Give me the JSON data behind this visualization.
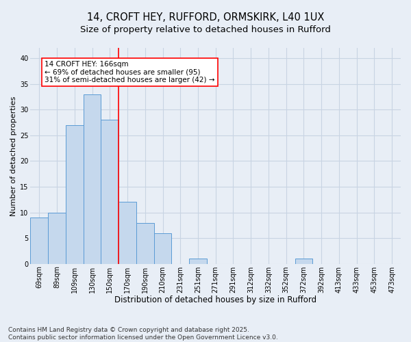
{
  "title_line1": "14, CROFT HEY, RUFFORD, ORMSKIRK, L40 1UX",
  "title_line2": "Size of property relative to detached houses in Rufford",
  "xlabel": "Distribution of detached houses by size in Rufford",
  "ylabel": "Number of detached properties",
  "categories": [
    "69sqm",
    "89sqm",
    "109sqm",
    "130sqm",
    "150sqm",
    "170sqm",
    "190sqm",
    "210sqm",
    "231sqm",
    "251sqm",
    "271sqm",
    "291sqm",
    "312sqm",
    "332sqm",
    "352sqm",
    "372sqm",
    "392sqm",
    "413sqm",
    "433sqm",
    "453sqm",
    "473sqm"
  ],
  "values": [
    9,
    10,
    27,
    33,
    28,
    12,
    8,
    6,
    0,
    1,
    0,
    0,
    0,
    0,
    0,
    1,
    0,
    0,
    0,
    0,
    0
  ],
  "bar_color": "#c5d8ed",
  "bar_edge_color": "#5b9bd5",
  "grid_color": "#c8d4e3",
  "background_color": "#e8eef6",
  "property_line_x": 4.5,
  "annotation_text": "14 CROFT HEY: 166sqm\n← 69% of detached houses are smaller (95)\n31% of semi-detached houses are larger (42) →",
  "annotation_box_color": "white",
  "annotation_box_edge": "red",
  "property_line_color": "red",
  "ylim": [
    0,
    42
  ],
  "yticks": [
    0,
    5,
    10,
    15,
    20,
    25,
    30,
    35,
    40
  ],
  "footer": "Contains HM Land Registry data © Crown copyright and database right 2025.\nContains public sector information licensed under the Open Government Licence v3.0.",
  "title_fontsize": 10.5,
  "subtitle_fontsize": 9.5,
  "xlabel_fontsize": 8.5,
  "ylabel_fontsize": 8,
  "tick_fontsize": 7,
  "footer_fontsize": 6.5,
  "annotation_fontsize": 7.5
}
